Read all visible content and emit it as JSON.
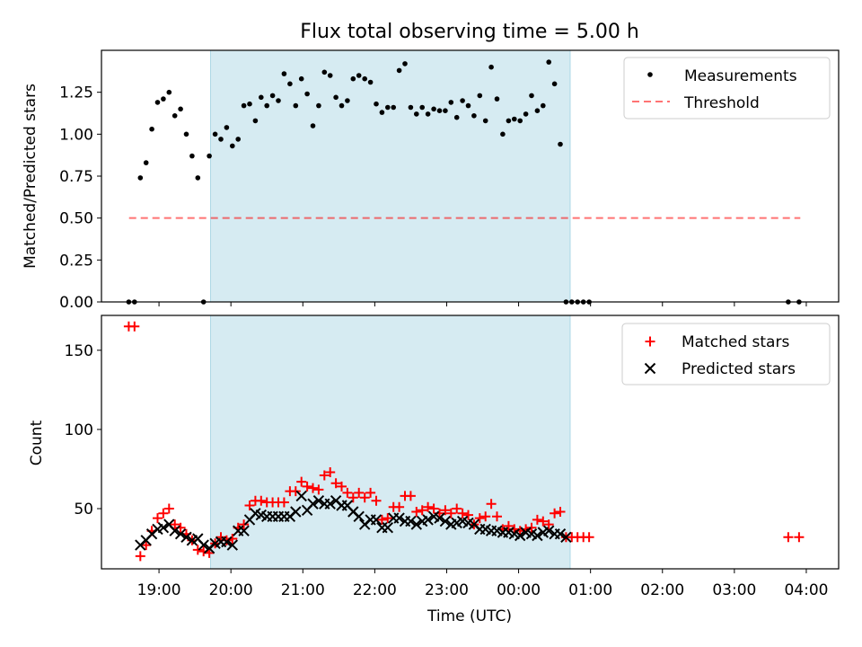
{
  "figure": {
    "title": "Flux total observing time = 5.00 h"
  },
  "colors": {
    "shade": "#add8e6",
    "measurement": "#000000",
    "threshold": "#ff0000",
    "matched": "#ff0000",
    "predicted": "#000000"
  },
  "chart_data": [
    {
      "type": "scatter",
      "ylabel": "Matched/Predicted stars",
      "ylim": [
        0.0,
        1.5
      ],
      "yticks": [
        0.0,
        0.25,
        0.5,
        0.75,
        1.0,
        1.25
      ],
      "ytick_labels": [
        "0.00",
        "0.25",
        "0.50",
        "0.75",
        "1.00",
        "1.25"
      ],
      "x_range_hours": [
        18.2,
        28.45
      ],
      "shaded_interval": [
        "19:43",
        "00:43"
      ],
      "legend_position": "top-right",
      "legend": [
        "Measurements",
        "Threshold"
      ],
      "threshold": {
        "name": "Threshold",
        "y": 0.5,
        "x_start": "18:35",
        "x_end": "03:55"
      },
      "series": [
        {
          "name": "Measurements",
          "x": [
            18.58,
            18.66,
            18.74,
            18.82,
            18.9,
            18.98,
            19.06,
            19.14,
            19.22,
            19.3,
            19.38,
            19.46,
            19.54,
            19.62,
            19.7,
            19.78,
            19.86,
            19.94,
            20.02,
            20.1,
            20.18,
            20.26,
            20.34,
            20.42,
            20.5,
            20.58,
            20.66,
            20.74,
            20.82,
            20.9,
            20.98,
            21.06,
            21.14,
            21.22,
            21.3,
            21.38,
            21.46,
            21.54,
            21.62,
            21.7,
            21.78,
            21.86,
            21.94,
            22.02,
            22.1,
            22.18,
            22.26,
            22.34,
            22.42,
            22.5,
            22.58,
            22.66,
            22.74,
            22.82,
            22.9,
            22.98,
            23.06,
            23.14,
            23.22,
            23.3,
            23.38,
            23.46,
            23.54,
            23.62,
            23.7,
            23.78,
            23.86,
            23.94,
            24.02,
            24.1,
            24.18,
            24.26,
            24.34,
            24.42,
            24.5,
            24.58,
            24.66,
            24.74,
            24.82,
            24.9,
            24.98,
            27.75,
            27.9
          ],
          "y": [
            0.0,
            0.0,
            0.74,
            0.83,
            1.03,
            1.19,
            1.21,
            1.25,
            1.11,
            1.15,
            1.0,
            0.87,
            0.74,
            0.0,
            0.87,
            1.0,
            0.97,
            1.04,
            0.93,
            0.97,
            1.17,
            1.18,
            1.08,
            1.22,
            1.17,
            1.23,
            1.2,
            1.36,
            1.3,
            1.17,
            1.33,
            1.24,
            1.05,
            1.17,
            1.37,
            1.35,
            1.22,
            1.17,
            1.2,
            1.33,
            1.35,
            1.33,
            1.31,
            1.18,
            1.13,
            1.16,
            1.16,
            1.38,
            1.42,
            1.16,
            1.12,
            1.16,
            1.12,
            1.15,
            1.14,
            1.14,
            1.19,
            1.1,
            1.2,
            1.17,
            1.11,
            1.23,
            1.08,
            1.4,
            1.21,
            1.0,
            1.08,
            1.09,
            1.08,
            1.12,
            1.23,
            1.14,
            1.17,
            1.43,
            1.3,
            0.94,
            0.0,
            0.0,
            0.0,
            0.0,
            0.0,
            0.0,
            0.0
          ]
        }
      ]
    },
    {
      "type": "scatter",
      "title": "",
      "xlabel": "Time (UTC)",
      "ylabel": "Count",
      "ylim": [
        12,
        172
      ],
      "yticks": [
        50,
        100,
        150
      ],
      "xticks": [
        "19:00",
        "20:00",
        "21:00",
        "22:00",
        "23:00",
        "00:00",
        "01:00",
        "02:00",
        "03:00",
        "04:00"
      ],
      "x_range_hours": [
        18.2,
        28.45
      ],
      "legend_position": "top-right",
      "legend": [
        "Matched stars",
        "Predicted stars"
      ],
      "series": [
        {
          "name": "Matched stars",
          "x": [
            18.58,
            18.66,
            18.74,
            18.82,
            18.9,
            18.98,
            19.06,
            19.14,
            19.22,
            19.3,
            19.38,
            19.46,
            19.54,
            19.62,
            19.7,
            19.78,
            19.86,
            19.94,
            20.02,
            20.1,
            20.18,
            20.26,
            20.34,
            20.42,
            20.5,
            20.58,
            20.66,
            20.74,
            20.82,
            20.9,
            20.98,
            21.06,
            21.14,
            21.22,
            21.3,
            21.38,
            21.46,
            21.54,
            21.62,
            21.7,
            21.78,
            21.86,
            21.94,
            22.02,
            22.1,
            22.18,
            22.26,
            22.34,
            22.42,
            22.5,
            22.58,
            22.66,
            22.74,
            22.82,
            22.9,
            22.98,
            23.06,
            23.14,
            23.22,
            23.3,
            23.38,
            23.46,
            23.54,
            23.62,
            23.7,
            23.78,
            23.86,
            23.94,
            24.02,
            24.1,
            24.18,
            24.26,
            24.34,
            24.42,
            24.5,
            24.58,
            24.66,
            24.74,
            24.82,
            24.9,
            24.98,
            27.75,
            27.9
          ],
          "y": [
            165,
            165,
            20,
            27,
            36,
            44,
            47,
            50,
            40,
            38,
            34,
            30,
            24,
            23,
            22,
            28,
            32,
            30,
            31,
            38,
            40,
            52,
            55,
            55,
            54,
            54,
            54,
            54,
            61,
            61,
            67,
            64,
            63,
            62,
            71,
            73,
            66,
            64,
            60,
            57,
            60,
            57,
            60,
            55,
            43,
            44,
            51,
            51,
            58,
            58,
            48,
            49,
            51,
            50,
            47,
            49,
            47,
            50,
            47,
            46,
            40,
            44,
            45,
            53,
            45,
            37,
            39,
            37,
            36,
            37,
            38,
            43,
            42,
            40,
            47,
            48,
            32,
            32,
            32,
            32,
            32,
            32,
            32
          ]
        },
        {
          "name": "Predicted stars",
          "x": [
            18.74,
            18.82,
            18.9,
            18.98,
            19.06,
            19.14,
            19.22,
            19.3,
            19.38,
            19.46,
            19.54,
            19.62,
            19.7,
            19.78,
            19.86,
            19.94,
            20.02,
            20.1,
            20.18,
            20.26,
            20.34,
            20.42,
            20.5,
            20.58,
            20.66,
            20.74,
            20.82,
            20.9,
            20.98,
            21.06,
            21.14,
            21.22,
            21.3,
            21.38,
            21.46,
            21.54,
            21.62,
            21.7,
            21.78,
            21.86,
            21.94,
            22.02,
            22.1,
            22.18,
            22.26,
            22.34,
            22.42,
            22.5,
            22.58,
            22.66,
            22.74,
            22.82,
            22.9,
            22.98,
            23.06,
            23.14,
            23.22,
            23.3,
            23.38,
            23.46,
            23.54,
            23.62,
            23.7,
            23.78,
            23.86,
            23.94,
            24.02,
            24.1,
            24.18,
            24.26,
            24.34,
            24.42,
            24.5,
            24.58,
            24.66
          ],
          "y": [
            27,
            30,
            34,
            37,
            38,
            40,
            36,
            34,
            32,
            30,
            31,
            27,
            25,
            28,
            29,
            29,
            27,
            36,
            36,
            43,
            47,
            46,
            45,
            45,
            45,
            45,
            45,
            48,
            58,
            49,
            53,
            55,
            53,
            53,
            55,
            52,
            52,
            48,
            45,
            40,
            43,
            43,
            38,
            38,
            44,
            44,
            42,
            42,
            40,
            42,
            43,
            45,
            44,
            42,
            40,
            41,
            42,
            41,
            40,
            37,
            37,
            36,
            36,
            35,
            35,
            34,
            33,
            35,
            34,
            33,
            35,
            36,
            34,
            34,
            32
          ]
        }
      ]
    }
  ]
}
